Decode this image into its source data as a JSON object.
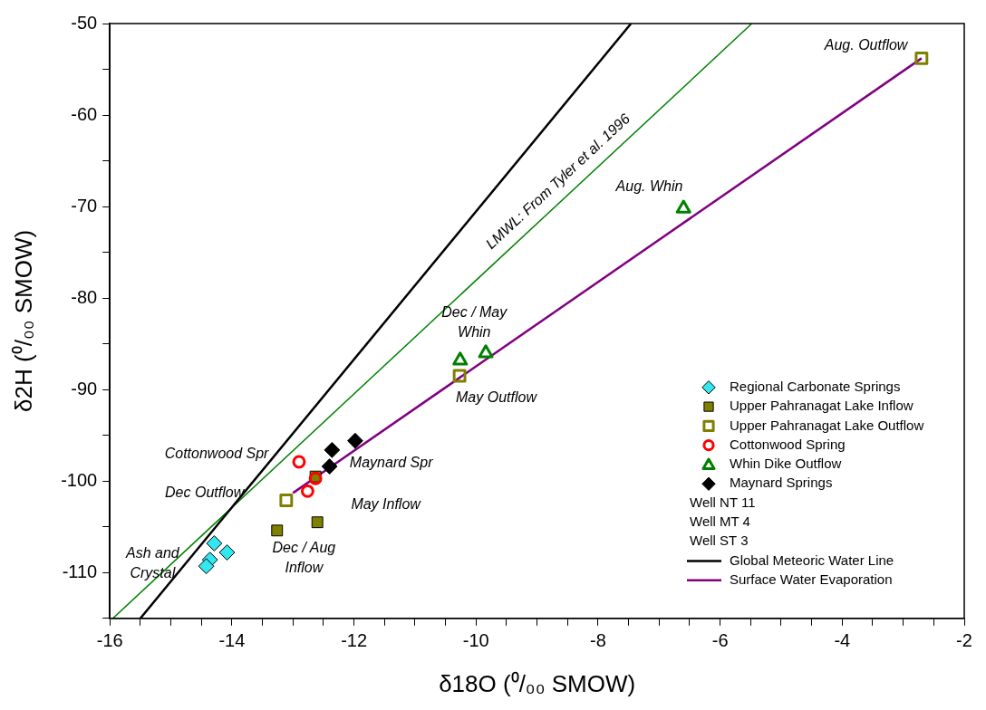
{
  "chart_data": {
    "type": "scatter",
    "xlabel": "δ18O (⁰/₀₀ SMOW)",
    "ylabel": "δ2H (⁰/₀₀ SMOW)",
    "xlim": [
      -16,
      -2
    ],
    "ylim": [
      -115,
      -50
    ],
    "xticks": [
      -16,
      {
        "value": -15.5,
        "label": null
      },
      {
        "value": -15,
        "label": null
      },
      {
        "value": -14.5,
        "label": null
      },
      -14,
      {
        "value": -13.5,
        "label": null
      },
      {
        "value": -13,
        "label": null
      },
      {
        "value": -12.5,
        "label": null
      },
      -12,
      {
        "value": -11.5,
        "label": null
      },
      {
        "value": -11,
        "label": null
      },
      {
        "value": -10.5,
        "label": null
      },
      -10,
      {
        "value": -9.5,
        "label": null
      },
      {
        "value": -9,
        "label": null
      },
      {
        "value": -8.5,
        "label": null
      },
      -8,
      {
        "value": -7.5,
        "label": null
      },
      {
        "value": -7,
        "label": null
      },
      {
        "value": -6.5,
        "label": null
      },
      -6,
      {
        "value": -5.5,
        "label": null
      },
      {
        "value": -5,
        "label": null
      },
      {
        "value": -4.5,
        "label": null
      },
      -4,
      {
        "value": -3.5,
        "label": null
      },
      {
        "value": -3,
        "label": null
      },
      {
        "value": -2.5,
        "label": null
      },
      -2
    ],
    "yticks": [
      {
        "value": -115,
        "label": null
      },
      -110,
      {
        "value": -105,
        "label": null
      },
      -100,
      {
        "value": -95,
        "label": null
      },
      -90,
      {
        "value": -85,
        "label": null
      },
      -80,
      {
        "value": -75,
        "label": null
      },
      -70,
      {
        "value": -65,
        "label": null
      },
      -60,
      {
        "value": -55,
        "label": null
      },
      -50
    ],
    "grid": false,
    "legend": "bottom right",
    "series": [
      {
        "name": "Regional Carbonate Springs",
        "marker": "diamond",
        "color": "#33e6f0",
        "x": [
          -14.29,
          -14.08,
          -14.36,
          -14.42
        ],
        "values": [
          -106.8,
          -107.8,
          -108.6,
          -109.3
        ]
      },
      {
        "name": "Upper Pahranagat Lake Inflow",
        "marker": "square",
        "color": "#808000",
        "x": [
          -13.26,
          -12.6,
          -12.63
        ],
        "values": [
          -105.4,
          -104.5,
          -99.5
        ]
      },
      {
        "name": "Upper Pahranagat Lake Outflow",
        "marker": "square",
        "color": "#808000",
        "x": [
          -13.11,
          -10.27,
          -2.7
        ],
        "values": [
          -102.1,
          -88.5,
          -53.8
        ]
      },
      {
        "name": "Cottonwood Spring",
        "marker": "circle",
        "color": "#ff0000",
        "x": [
          -12.9,
          -12.76,
          -12.63
        ],
        "values": [
          -97.9,
          -101.1,
          -99.7
        ]
      },
      {
        "name": "Whin Dike Outflow",
        "marker": "triangle",
        "color": "#008000",
        "x": [
          -10.26,
          -9.84,
          -6.6
        ],
        "values": [
          -86.7,
          -85.9,
          -70.1
        ]
      },
      {
        "name": "Maynard Springs",
        "marker": "diamond",
        "color": "#000000",
        "x": [
          -12.36,
          -11.98,
          -12.4
        ],
        "values": [
          -96.6,
          -95.6,
          -98.4
        ]
      },
      {
        "name": "Global Meteoric Water Line",
        "type": "line",
        "marker": "none",
        "color": "#000000",
        "x": [
          -15.5,
          -7.46
        ],
        "values": [
          -115,
          -50
        ]
      },
      {
        "name": "Surface Water Evaporation",
        "type": "line",
        "marker": "none",
        "color": "#800080",
        "x": [
          -13.0,
          -2.7
        ],
        "values": [
          -101.3,
          -53.8
        ]
      },
      {
        "type": "line",
        "marker": "none",
        "color": "#008000",
        "x": [
          -15.95,
          -5.48
        ],
        "values": [
          -115,
          -50
        ]
      }
    ],
    "annotations": [
      "Well NT 11",
      "Well MT 4",
      "Well ST 3",
      "LMWL: From Tyler et al. 1996",
      "Aug. Outflow",
      "Aug. Whin",
      "Dec / May\nWhin",
      "May Outflow",
      "Cottonwood Spr",
      "Maynard Spr",
      "Dec Outflow",
      "May Inflow",
      "Dec / Aug\nInflow",
      "Ash and\nCrystal"
    ]
  }
}
